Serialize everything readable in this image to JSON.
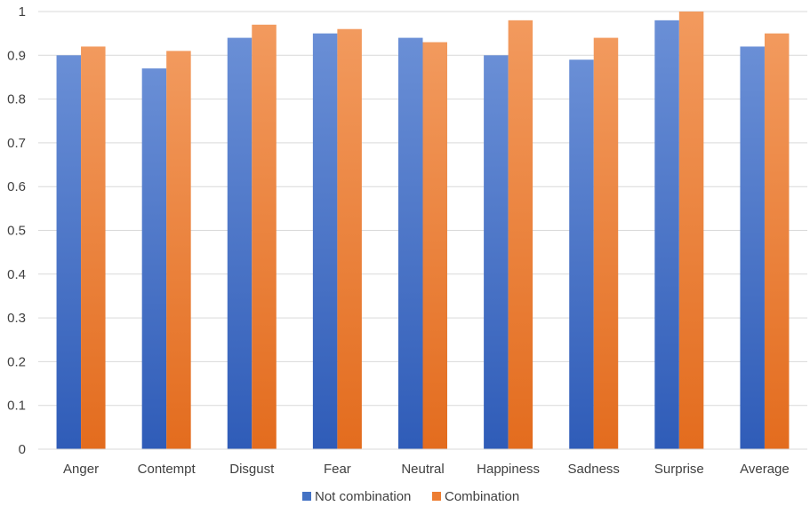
{
  "chart_data": {
    "type": "bar",
    "categories": [
      "Anger",
      "Contempt",
      "Disgust",
      "Fear",
      "Neutral",
      "Happiness",
      "Sadness",
      "Surprise",
      "Average"
    ],
    "series": [
      {
        "name": "Not combination",
        "values": [
          0.9,
          0.87,
          0.94,
          0.95,
          0.94,
          0.9,
          0.89,
          0.98,
          0.92
        ],
        "color": "#4472c4"
      },
      {
        "name": "Combination",
        "values": [
          0.92,
          0.91,
          0.97,
          0.96,
          0.93,
          0.98,
          0.94,
          1.0,
          0.95
        ],
        "color": "#ed7d31"
      }
    ],
    "y_ticks": [
      "0",
      "0.1",
      "0.2",
      "0.3",
      "0.4",
      "0.5",
      "0.6",
      "0.7",
      "0.8",
      "0.9",
      "1"
    ],
    "ylim": [
      0,
      1
    ],
    "grid": true,
    "legend_position": "bottom-center"
  }
}
